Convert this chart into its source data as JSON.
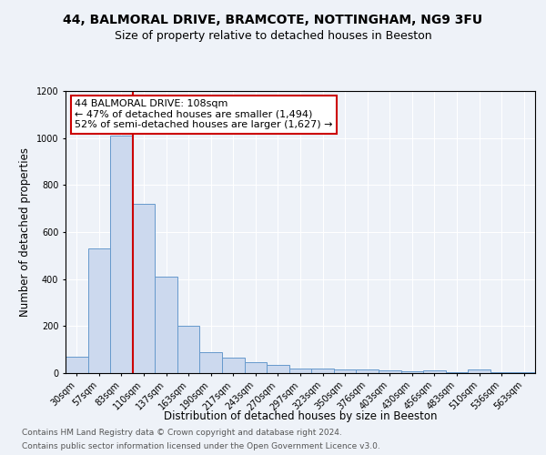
{
  "title1": "44, BALMORAL DRIVE, BRAMCOTE, NOTTINGHAM, NG9 3FU",
  "title2": "Size of property relative to detached houses in Beeston",
  "xlabel": "Distribution of detached houses by size in Beeston",
  "ylabel": "Number of detached properties",
  "categories": [
    "30sqm",
    "57sqm",
    "83sqm",
    "110sqm",
    "137sqm",
    "163sqm",
    "190sqm",
    "217sqm",
    "243sqm",
    "270sqm",
    "297sqm",
    "323sqm",
    "350sqm",
    "376sqm",
    "403sqm",
    "430sqm",
    "456sqm",
    "483sqm",
    "510sqm",
    "536sqm",
    "563sqm"
  ],
  "values": [
    70,
    530,
    1010,
    720,
    410,
    200,
    90,
    65,
    48,
    35,
    20,
    18,
    17,
    15,
    10,
    8,
    10,
    5,
    14,
    3,
    2
  ],
  "bar_color": "#ccd9ee",
  "bar_edge_color": "#6699cc",
  "property_line_x": 2.5,
  "property_line_color": "#cc0000",
  "annotation_text": "44 BALMORAL DRIVE: 108sqm\n← 47% of detached houses are smaller (1,494)\n52% of semi-detached houses are larger (1,627) →",
  "annotation_box_facecolor": "#ffffff",
  "annotation_box_edgecolor": "#cc0000",
  "ylim": [
    0,
    1200
  ],
  "yticks": [
    0,
    200,
    400,
    600,
    800,
    1000,
    1200
  ],
  "footer1": "Contains HM Land Registry data © Crown copyright and database right 2024.",
  "footer2": "Contains public sector information licensed under the Open Government Licence v3.0.",
  "bg_color": "#eef2f8",
  "title1_fontsize": 10,
  "title2_fontsize": 9,
  "xlabel_fontsize": 8.5,
  "ylabel_fontsize": 8.5,
  "tick_fontsize": 7,
  "annotation_fontsize": 8,
  "footer_fontsize": 6.5
}
